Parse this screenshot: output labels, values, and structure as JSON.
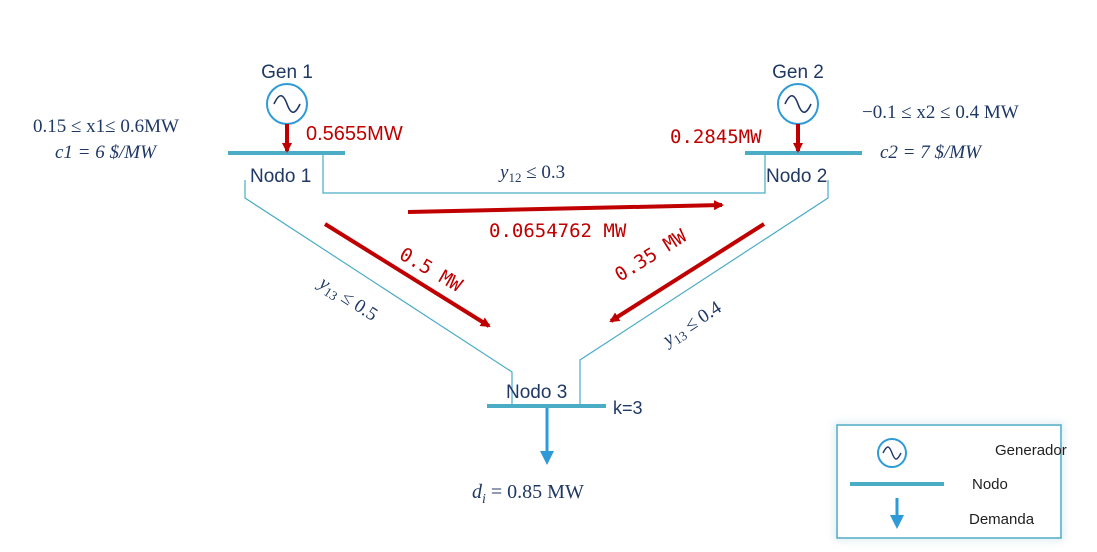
{
  "generators": {
    "gen1": {
      "label": "Gen 1",
      "output": "0.5655MW"
    },
    "gen2": {
      "label": "Gen 2",
      "output": "0.2845MW"
    }
  },
  "constraints": {
    "gen1_limit": "0.15 ≤ x1≤ 0.6MW",
    "gen1_cost": "c1 = 6 $/MW",
    "gen2_limit": "−0.1 ≤ x2 ≤ 0.4 MW",
    "gen2_cost": "c2 = 7 $/MW"
  },
  "nodes": {
    "node1": "Nodo 1",
    "node2": "Nodo 2",
    "node3": "Nodo 3",
    "node3_k": "k=3"
  },
  "lines": {
    "y12": {
      "var": "y",
      "sub": "12",
      "rest": " ≤ 0.3"
    },
    "y13_left": {
      "var": "y",
      "sub": "13",
      "rest": " ≤ 0.5"
    },
    "y13_right": {
      "var": "y",
      "sub": "13",
      "rest": " ≤ 0.4"
    }
  },
  "flows": {
    "f12": "0.0654762 MW",
    "f13": "0.5 MW",
    "f23": "0.35 MW"
  },
  "demand": {
    "var": "d",
    "sub": "i",
    "rest": " = 0.85 MW"
  },
  "legend": {
    "generator": "Generador",
    "node": "Nodo",
    "demand": "Demanda"
  },
  "colors": {
    "bus": "#4bacc6",
    "line": "#4bacc6",
    "flow": "#c00000",
    "text": "#1f3864"
  }
}
